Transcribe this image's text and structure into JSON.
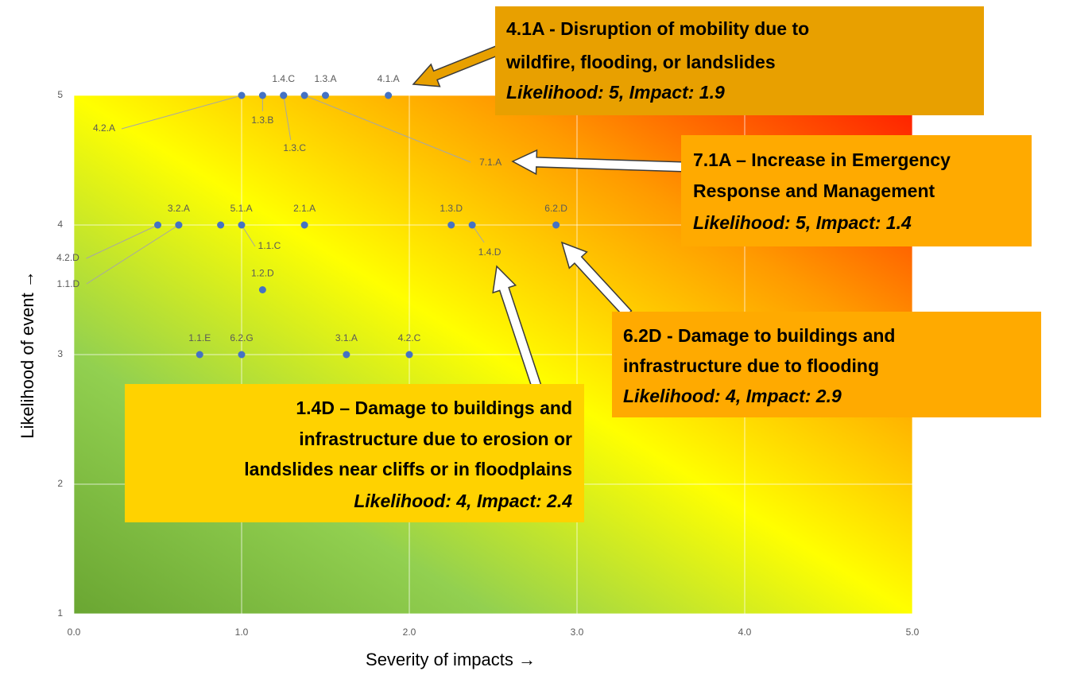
{
  "chart_data": {
    "type": "scatter",
    "xlabel": "Severity of impacts →",
    "ylabel": "Likelihood of event →",
    "xlim": [
      0,
      5
    ],
    "ylim": [
      1,
      5
    ],
    "xticks": [
      {
        "value": 0,
        "label": "0.0"
      },
      {
        "value": 1,
        "label": "1.0"
      },
      {
        "value": 2,
        "label": "2.0"
      },
      {
        "value": 3,
        "label": "3.0"
      },
      {
        "value": 4,
        "label": "4.0"
      },
      {
        "value": 5,
        "label": "5.0"
      }
    ],
    "yticks": [
      1,
      2,
      3,
      4,
      5
    ],
    "grid": true,
    "series": [
      {
        "color": "#4472c4",
        "labels": [
          "4.2.A",
          "1.3.B",
          "1.4.C",
          "1.3.C",
          "7.1.A",
          "1.3.A",
          "4.1.A",
          "4.2.D",
          "3.2.A",
          "1.1.D",
          "5.1.A",
          "1.1.C",
          "2.1.A",
          "1.3.D",
          "1.4.D",
          "6.2.D",
          "1.2.D",
          "1.1.E",
          "6.2.G",
          "3.1.A",
          "4.2.C"
        ],
        "x": [
          1.0,
          1.125,
          1.25,
          1.25,
          1.375,
          1.5,
          1.875,
          0.5,
          0.625,
          0.625,
          0.875,
          1.0,
          1.375,
          2.25,
          2.375,
          2.875,
          1.125,
          0.75,
          1.0,
          1.625,
          2.0
        ],
        "values": [
          5,
          5,
          5,
          5,
          5,
          5,
          5,
          4,
          4,
          4,
          4,
          4,
          4,
          4,
          4,
          4,
          3.5,
          3,
          3,
          3,
          3
        ]
      }
    ],
    "annotations": [
      {
        "lines": [
          "4.1A - Disruption of mobility due to",
          "wildfire, flooding, or landslides"
        ],
        "detail": "Likelihood: 5, Impact: 1.9"
      },
      {
        "lines": [
          "7.1A – Increase in Emergency",
          "Response and Management"
        ],
        "detail": "Likelihood: 5, Impact: 1.4"
      },
      {
        "lines": [
          "6.2D - Damage to buildings and",
          "infrastructure due to flooding"
        ],
        "detail": "Likelihood: 4, Impact: 2.9"
      },
      {
        "lines": [
          "1.4D – Damage to buildings and",
          "infrastructure due to erosion or",
          "landslides near cliffs or in floodplains"
        ],
        "detail": "Likelihood: 4, Impact: 2.4"
      }
    ]
  }
}
